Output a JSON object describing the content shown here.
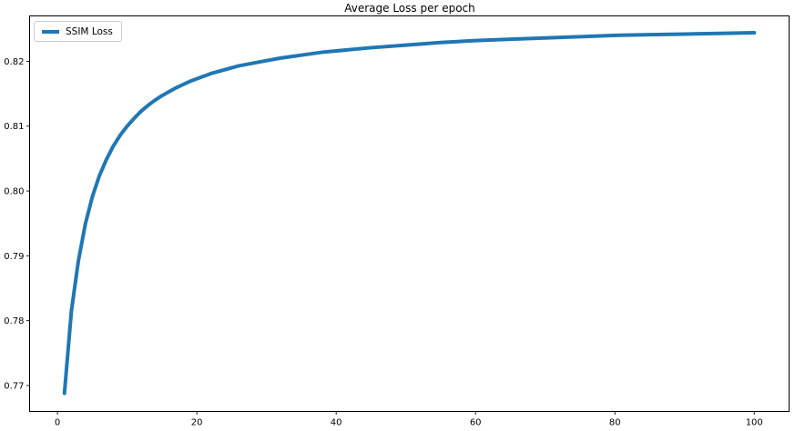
{
  "title": "Average Loss per epoch",
  "legend": {
    "label": "SSIM Loss",
    "border_color": "#cccccc",
    "position": "upper left"
  },
  "colors": {
    "line": "#1f77b4",
    "spine": "#000000",
    "background": "#ffffff",
    "text": "#000000"
  },
  "chart_data": {
    "type": "line",
    "title": "Average Loss per epoch",
    "xlabel": "",
    "ylabel": "",
    "grid": false,
    "legend_position": "upper left",
    "legend_entries": [
      "SSIM Loss"
    ],
    "xlim": [
      -4,
      105
    ],
    "ylim": [
      0.766,
      0.827
    ],
    "xticks": [
      0,
      20,
      40,
      60,
      80,
      100
    ],
    "xtick_labels": [
      "0",
      "20",
      "40",
      "60",
      "80",
      "100"
    ],
    "yticks": [
      0.77,
      0.78,
      0.79,
      0.8,
      0.81,
      0.82
    ],
    "ytick_labels": [
      "0.77",
      "0.78",
      "0.79",
      "0.80",
      "0.81",
      "0.82"
    ],
    "series": [
      {
        "name": "SSIM Loss",
        "color": "#1f77b4",
        "x": [
          1,
          2,
          3,
          4,
          5,
          6,
          7,
          8,
          9,
          10,
          11,
          12,
          13,
          14,
          15,
          16,
          17,
          18,
          19,
          20,
          22,
          24,
          26,
          28,
          30,
          32,
          34,
          36,
          38,
          40,
          45,
          50,
          55,
          60,
          65,
          70,
          75,
          80,
          85,
          90,
          95,
          100
        ],
        "y": [
          0.7688,
          0.7815,
          0.7892,
          0.7949,
          0.7991,
          0.8023,
          0.8048,
          0.8069,
          0.8086,
          0.81,
          0.8112,
          0.8123,
          0.8132,
          0.814,
          0.8147,
          0.8153,
          0.8159,
          0.8164,
          0.8169,
          0.8173,
          0.8181,
          0.8187,
          0.8193,
          0.8197,
          0.8201,
          0.8205,
          0.8208,
          0.8211,
          0.8214,
          0.8216,
          0.8221,
          0.8225,
          0.8229,
          0.8232,
          0.8234,
          0.8236,
          0.8238,
          0.824,
          0.8241,
          0.8242,
          0.8243,
          0.8244
        ]
      }
    ]
  }
}
